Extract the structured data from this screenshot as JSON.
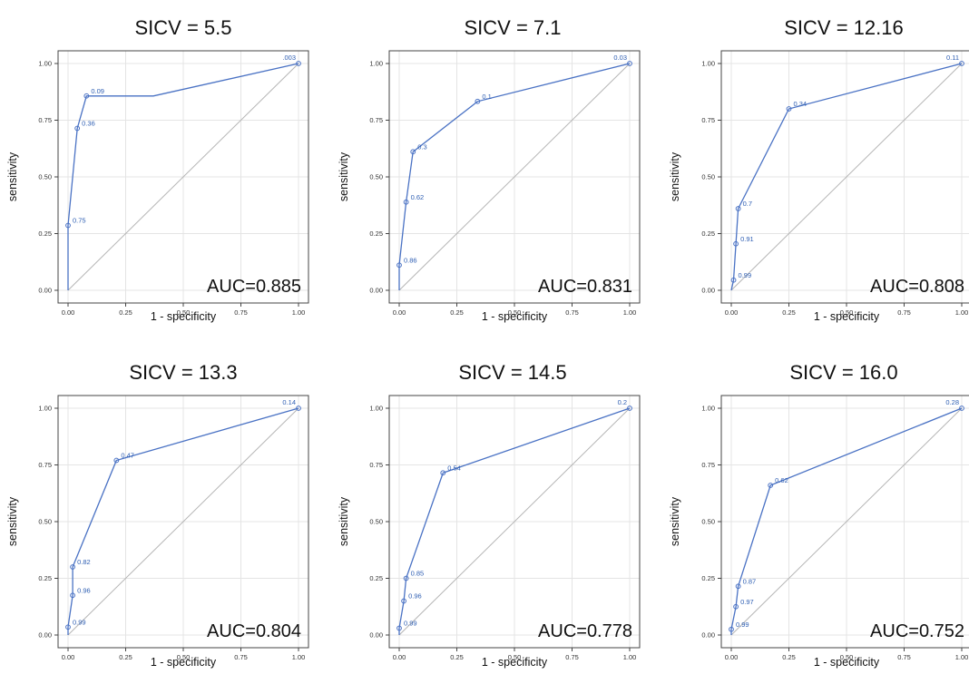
{
  "chart_data": [
    {
      "type": "line",
      "title": "SICV = 5.5",
      "xlabel": "1 - specificity",
      "ylabel": "sensitivity",
      "annotation": "AUC=0.885",
      "xlim": [
        0,
        1
      ],
      "ylim": [
        0,
        1
      ],
      "ticks": [
        "0.00",
        "0.25",
        "0.50",
        "0.75",
        "1.00"
      ],
      "grid": true,
      "series": [
        {
          "x": [
            0,
            0,
            0.04,
            0.08,
            0.37,
            1.0
          ],
          "y": [
            0,
            0.286,
            0.714,
            0.857,
            0.857,
            1.0
          ],
          "labels": [
            "",
            "0.75",
            "0.36",
            "0.09",
            "",
            ".003"
          ],
          "markers": [
            false,
            true,
            true,
            true,
            false,
            true
          ]
        }
      ],
      "reference_line": [
        [
          0,
          0
        ],
        [
          1,
          1
        ]
      ]
    },
    {
      "type": "line",
      "title": "SICV = 7.1",
      "xlabel": "1 - specificity",
      "ylabel": "sensitivity",
      "annotation": "AUC=0.831",
      "xlim": [
        0,
        1
      ],
      "ylim": [
        0,
        1
      ],
      "ticks": [
        "0.00",
        "0.25",
        "0.50",
        "0.75",
        "1.00"
      ],
      "grid": true,
      "series": [
        {
          "x": [
            0,
            0,
            0.03,
            0.06,
            0.34,
            1.0
          ],
          "y": [
            0,
            0.111,
            0.389,
            0.611,
            0.833,
            1.0
          ],
          "labels": [
            "",
            "0.86",
            "0.62",
            "0.3",
            "0.1",
            "0.03"
          ],
          "markers": [
            false,
            true,
            true,
            true,
            true,
            true
          ]
        }
      ],
      "reference_line": [
        [
          0,
          0
        ],
        [
          1,
          1
        ]
      ]
    },
    {
      "type": "line",
      "title": "SICV = 12.16",
      "xlabel": "1 - specificity",
      "ylabel": "sensitivity",
      "annotation": "AUC=0.808",
      "xlim": [
        0,
        1
      ],
      "ylim": [
        0,
        1
      ],
      "ticks": [
        "0.00",
        "0.25",
        "0.50",
        "0.75",
        "1.00"
      ],
      "grid": true,
      "series": [
        {
          "x": [
            0,
            0.01,
            0.02,
            0.03,
            0.25,
            1.0
          ],
          "y": [
            0,
            0.045,
            0.205,
            0.36,
            0.8,
            1.0
          ],
          "labels": [
            "",
            "0.99",
            "0.91",
            "0.7",
            "0.34",
            "0.11"
          ],
          "markers": [
            false,
            true,
            true,
            true,
            true,
            true
          ]
        }
      ],
      "reference_line": [
        [
          0,
          0
        ],
        [
          1,
          1
        ]
      ]
    },
    {
      "type": "line",
      "title": "SICV = 13.3",
      "xlabel": "1 - specificity",
      "ylabel": "sensitivity",
      "annotation": "AUC=0.804",
      "xlim": [
        0,
        1
      ],
      "ylim": [
        0,
        1
      ],
      "ticks": [
        "0.00",
        "0.25",
        "0.50",
        "0.75",
        "1.00"
      ],
      "grid": true,
      "series": [
        {
          "x": [
            0,
            0,
            0.02,
            0.02,
            0.21,
            1.0
          ],
          "y": [
            0,
            0.035,
            0.175,
            0.3,
            0.77,
            1.0
          ],
          "labels": [
            "",
            "0.99",
            "0.96",
            "0.82",
            "0.47",
            "0.14"
          ],
          "markers": [
            false,
            true,
            true,
            true,
            true,
            true
          ]
        }
      ],
      "reference_line": [
        [
          0,
          0
        ],
        [
          1,
          1
        ]
      ]
    },
    {
      "type": "line",
      "title": "SICV = 14.5",
      "xlabel": "1 - specificity",
      "ylabel": "sensitivity",
      "annotation": "AUC=0.778",
      "xlim": [
        0,
        1
      ],
      "ylim": [
        0,
        1
      ],
      "ticks": [
        "0.00",
        "0.25",
        "0.50",
        "0.75",
        "1.00"
      ],
      "grid": true,
      "series": [
        {
          "x": [
            0,
            0,
            0.02,
            0.03,
            0.19,
            1.0
          ],
          "y": [
            0,
            0.03,
            0.15,
            0.25,
            0.715,
            1.0
          ],
          "labels": [
            "",
            "0.99",
            "0.96",
            "0.85",
            "0.54",
            "0.2"
          ],
          "markers": [
            false,
            true,
            true,
            true,
            true,
            true
          ]
        }
      ],
      "reference_line": [
        [
          0,
          0
        ],
        [
          1,
          1
        ]
      ]
    },
    {
      "type": "line",
      "title": "SICV = 16.0",
      "xlabel": "1 - specificity",
      "ylabel": "sensitivity",
      "annotation": "AUC=0.752",
      "xlim": [
        0,
        1
      ],
      "ylim": [
        0,
        1
      ],
      "ticks": [
        "0.00",
        "0.25",
        "0.50",
        "0.75",
        "1.00"
      ],
      "grid": true,
      "series": [
        {
          "x": [
            0,
            0,
            0.02,
            0.03,
            0.17,
            1.0
          ],
          "y": [
            0,
            0.025,
            0.125,
            0.215,
            0.66,
            1.0
          ],
          "labels": [
            "",
            "0.99",
            "0.97",
            "0.87",
            "0.62",
            "0.28"
          ],
          "markers": [
            false,
            true,
            true,
            true,
            true,
            true
          ]
        }
      ],
      "reference_line": [
        [
          0,
          0
        ],
        [
          1,
          1
        ]
      ]
    }
  ],
  "colors": {
    "curve": "#4a72c4",
    "point_label": "#2f5fb3",
    "reference_line": "#b5b5b5",
    "grid": "#e4e4e4",
    "frame": "#444444"
  }
}
